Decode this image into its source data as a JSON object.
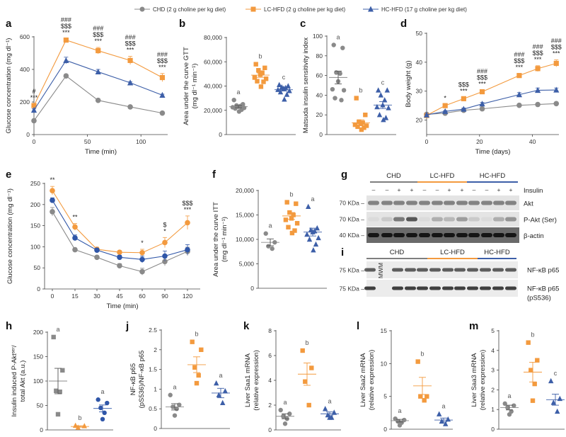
{
  "legend": [
    {
      "label": "CHD (2 g choline per kg diet)",
      "color": "#8a8a8a",
      "marker": "circle"
    },
    {
      "label": "LC-HFD (2 g choline per kg diet)",
      "color": "#f39a3e",
      "marker": "square"
    },
    {
      "label": "HC-HFD (17 g choline per kg diet)",
      "color": "#3d5fa8",
      "marker": "triangle"
    }
  ],
  "chart_data": [
    {
      "panel": "a",
      "type": "line",
      "xlabel": "Time (min)",
      "ylabel": [
        "Glucose concentration (mg dl⁻¹)"
      ],
      "xlim": [
        0,
        125
      ],
      "ylim": [
        0,
        600
      ],
      "xticks": [
        0,
        50,
        100
      ],
      "yticks": [
        0,
        200,
        400,
        600
      ],
      "x": [
        0,
        30,
        60,
        90,
        120
      ],
      "series": [
        {
          "name": "CHD",
          "marker": "circle",
          "color": "#8a8a8a",
          "values": [
            85,
            360,
            210,
            170,
            132
          ],
          "sem": [
            8,
            10,
            6,
            5,
            5
          ]
        },
        {
          "name": "LC-HFD",
          "marker": "square",
          "color": "#f39a3e",
          "values": [
            178,
            580,
            515,
            455,
            350
          ],
          "sem": [
            10,
            8,
            20,
            25,
            25
          ]
        },
        {
          "name": "HC-HFD",
          "marker": "triangle",
          "color": "#3d5fa8",
          "values": [
            150,
            455,
            385,
            318,
            242
          ],
          "sem": [
            8,
            20,
            15,
            6,
            6
          ]
        }
      ],
      "annotations": [
        {
          "x": 0,
          "text": [
            "#",
            "***"
          ]
        },
        {
          "x": 30,
          "text": [
            "###",
            "$$$",
            "***"
          ]
        },
        {
          "x": 60,
          "text": [
            "###",
            "$$$",
            "***"
          ]
        },
        {
          "x": 90,
          "text": [
            "###",
            "$$$",
            "***"
          ]
        },
        {
          "x": 120,
          "text": [
            "###",
            "$$$",
            "***"
          ]
        }
      ]
    },
    {
      "panel": "b",
      "type": "scatter",
      "ylabel": [
        "Area under the curve GTT",
        "(mg dl⁻¹ min⁻¹)"
      ],
      "ylim": [
        0,
        80000
      ],
      "yticks": [
        0,
        20000,
        40000,
        60000,
        80000
      ],
      "ytick_labels": [
        "0",
        "20,000",
        "40,000",
        "60,000",
        "80,000"
      ],
      "groups": [
        {
          "name": "CHD",
          "marker": "circle",
          "color": "#8a8a8a",
          "letter": "a",
          "points": [
            28500,
            25000,
            24000,
            23500,
            23000,
            22500,
            22000,
            21500,
            20500,
            19000
          ],
          "mean": 23000,
          "sem": 900
        },
        {
          "name": "LC-HFD",
          "marker": "square",
          "color": "#f39a3e",
          "letter": "b",
          "points": [
            58000,
            55000,
            53000,
            51000,
            49500,
            47000,
            46000,
            44000,
            43500,
            39500
          ],
          "mean": 49000,
          "sem": 1800
        },
        {
          "name": "HC-HFD",
          "marker": "triangle",
          "color": "#3d5fa8",
          "letter": "c",
          "points": [
            41000,
            40000,
            39000,
            38500,
            38000,
            37000,
            36000,
            35000,
            33000,
            29000
          ],
          "mean": 37000,
          "sem": 1100
        }
      ]
    },
    {
      "panel": "c",
      "type": "scatter",
      "ylabel": [
        "Matsuda insulin sensitivity index"
      ],
      "ylim": [
        0,
        100
      ],
      "yticks": [
        0,
        20,
        40,
        60,
        80,
        100
      ],
      "ytick_labels": [
        "0",
        "20",
        "40",
        "60",
        "80",
        "100"
      ],
      "groups": [
        {
          "name": "CHD",
          "marker": "circle",
          "color": "#8a8a8a",
          "letter": "a",
          "points": [
            91,
            88,
            63,
            62,
            54,
            46,
            45,
            37,
            35
          ],
          "mean": 58,
          "sem": 6.5
        },
        {
          "name": "LC-HFD",
          "marker": "square",
          "color": "#f39a3e",
          "letter": "b",
          "points": [
            37,
            20,
            13,
            12,
            11,
            10,
            9,
            8,
            7,
            5
          ],
          "mean": 12,
          "sem": 3
        },
        {
          "name": "HC-HFD",
          "marker": "triangle",
          "color": "#3d5fa8",
          "letter": "c",
          "points": [
            45,
            45,
            40,
            35,
            30,
            28,
            27,
            20,
            17,
            15
          ],
          "mean": 30,
          "sem": 3.5
        }
      ]
    },
    {
      "panel": "d",
      "type": "line",
      "xlabel": "Time (days)",
      "ylabel": [
        "Body weight (g)"
      ],
      "xlim": [
        0,
        50
      ],
      "ylim": [
        15,
        50
      ],
      "xticks": [
        0,
        20,
        40
      ],
      "yticks": [
        20,
        30,
        40,
        50
      ],
      "x": [
        0,
        7,
        14,
        21,
        35,
        42,
        49
      ],
      "series": [
        {
          "name": "CHD",
          "marker": "circle",
          "color": "#8a8a8a",
          "values": [
            22,
            22.4,
            23.4,
            23.9,
            25.1,
            25.4,
            25.7
          ],
          "sem": [
            0.3,
            0.3,
            0.3,
            0.3,
            0.3,
            0.3,
            0.3
          ]
        },
        {
          "name": "LC-HFD",
          "marker": "square",
          "color": "#f39a3e",
          "values": [
            21.6,
            25,
            27.4,
            29.8,
            35.4,
            37.8,
            39.6
          ],
          "sem": [
            0.3,
            0.4,
            0.4,
            0.5,
            0.6,
            1.0,
            1.2
          ]
        },
        {
          "name": "HC-HFD",
          "marker": "triangle",
          "color": "#3d5fa8",
          "values": [
            21.8,
            23,
            23.8,
            25.6,
            28.8,
            30.3,
            30.4
          ],
          "sem": [
            0.3,
            0.3,
            0.4,
            0.5,
            0.7,
            0.8,
            0.7
          ]
        }
      ],
      "annotations": [
        {
          "x": 7,
          "text": [
            "*"
          ]
        },
        {
          "x": 14,
          "text": [
            "$$$",
            "***"
          ]
        },
        {
          "x": 21,
          "text": [
            "###",
            "$$$",
            "***"
          ]
        },
        {
          "x": 35,
          "text": [
            "###",
            "$$$",
            "***"
          ]
        },
        {
          "x": 42,
          "text": [
            "###",
            "$$$",
            "***"
          ]
        },
        {
          "x": 49,
          "text": [
            "###",
            "$$$",
            "***"
          ]
        }
      ]
    },
    {
      "panel": "e",
      "type": "line",
      "xlabel": "Time (min)",
      "ylabel": [
        "Glucose concentration (mg dl⁻¹)"
      ],
      "categorical_x": true,
      "ylim": [
        0,
        250
      ],
      "yticks": [
        0,
        50,
        100,
        150,
        200,
        250
      ],
      "x": [
        "0",
        "15",
        "30",
        "45",
        "60",
        "90",
        "120"
      ],
      "series": [
        {
          "name": "CHD",
          "marker": "circle",
          "color": "#8a8a8a",
          "values": [
            183,
            93,
            75,
            55,
            41,
            65,
            89
          ],
          "sem": [
            10,
            4,
            4,
            5,
            8,
            10,
            10
          ]
        },
        {
          "name": "LC-HFD",
          "marker": "circle",
          "color": "#f39a3e",
          "values": [
            233,
            147,
            94,
            87,
            86,
            110,
            157
          ],
          "sem": [
            10,
            8,
            5,
            4,
            8,
            12,
            16
          ]
        },
        {
          "name": "HC-HFD",
          "marker": "circle",
          "color": "#2f56a8",
          "values": [
            210,
            121,
            92,
            75,
            70,
            78,
            93
          ],
          "sem": [
            6,
            7,
            4,
            5,
            8,
            12,
            12
          ]
        }
      ],
      "annotations": [
        {
          "x": 0,
          "text": [
            "**"
          ]
        },
        {
          "x": 1,
          "text": [
            "**"
          ]
        },
        {
          "x": 4,
          "text": [
            "*"
          ]
        },
        {
          "x": 5,
          "text": [
            "$",
            "*"
          ]
        },
        {
          "x": 6,
          "text": [
            "$$$",
            "***"
          ]
        }
      ]
    },
    {
      "panel": "f",
      "type": "scatter",
      "ylabel": [
        "Area under the curve ITT",
        "(mg dl⁻¹ min⁻¹)"
      ],
      "ylim": [
        0,
        20000
      ],
      "yticks": [
        0,
        5000,
        10000,
        15000,
        20000
      ],
      "ytick_labels": [
        "0",
        "5,000",
        "10,000",
        "15,000",
        "20,000"
      ],
      "groups": [
        {
          "name": "CHD",
          "marker": "circle",
          "color": "#8a8a8a",
          "letter": "a",
          "points": [
            11200,
            9400,
            8600,
            8100
          ],
          "mean": 9400,
          "sem": 700
        },
        {
          "name": "LC-HFD",
          "marker": "square",
          "color": "#f39a3e",
          "letter": "b",
          "points": [
            17600,
            17300,
            15500,
            15000,
            14300,
            14000,
            13300,
            12500,
            11800,
            11300
          ],
          "mean": 14800,
          "sem": 700
        },
        {
          "name": "HC-HFD",
          "marker": "triangle",
          "color": "#3d5fa8",
          "letter": "a",
          "points": [
            16700,
            12300,
            11900,
            11700,
            11500,
            11000,
            10300,
            10000,
            9000,
            7800
          ],
          "mean": 11500,
          "sem": 800
        }
      ]
    },
    {
      "panel": "h",
      "type": "scatter",
      "ylabel": [
        "Insulin induced P-Aktˢᵉʳ/",
        "total Akt (a.u.)"
      ],
      "ylim": [
        0,
        200
      ],
      "yticks": [
        0,
        50,
        100,
        150,
        200
      ],
      "ytick_labels": [
        "0",
        "50",
        "100",
        "150",
        "200"
      ],
      "groups": [
        {
          "name": "CHD",
          "marker": "square",
          "color": "#8a8a8a",
          "letter": "a",
          "points": [
            190,
            122,
            80,
            78,
            32
          ],
          "mean": 100,
          "sem": 26
        },
        {
          "name": "LC-HFD",
          "marker": "triangle",
          "color": "#f39a3e",
          "letter": "b",
          "points": [
            9,
            8,
            5
          ],
          "mean": 7,
          "sem": 1.5
        },
        {
          "name": "HC-HFD",
          "marker": "circle",
          "color": "#2f56a8",
          "letter": "a",
          "points": [
            62,
            55,
            45,
            35,
            22
          ],
          "mean": 44,
          "sem": 7
        }
      ]
    },
    {
      "panel": "j",
      "type": "scatter",
      "ylabel": [
        "NF-κB p65",
        "(pS536)/NF-κB p65"
      ],
      "ylim": [
        0,
        2.5
      ],
      "yticks": [
        0,
        0.5,
        1,
        1.5,
        2,
        2.5
      ],
      "ytick_labels": [
        "0",
        "0.5",
        "1",
        "1.5",
        "2",
        "2.5"
      ],
      "groups": [
        {
          "name": "CHD",
          "marker": "circle",
          "color": "#8a8a8a",
          "letter": "a",
          "points": [
            0.85,
            0.6,
            0.55,
            0.5,
            0.33
          ],
          "mean": 0.55,
          "sem": 0.08
        },
        {
          "name": "LC-HFD",
          "marker": "square",
          "color": "#f39a3e",
          "letter": "b",
          "points": [
            2.2,
            2.0,
            1.55,
            1.35,
            1.15
          ],
          "mean": 1.62,
          "sem": 0.2
        },
        {
          "name": "HC-HFD",
          "marker": "triangle",
          "color": "#3d5fa8",
          "letter": "a",
          "points": [
            1.15,
            0.95,
            0.85,
            0.65
          ],
          "mean": 0.9,
          "sem": 0.12
        }
      ]
    },
    {
      "panel": "k",
      "type": "scatter",
      "ylabel": [
        "Liver Saa1 mRNA",
        "(relative expression)"
      ],
      "ylim": [
        0,
        8
      ],
      "yticks": [
        0,
        2,
        4,
        6,
        8
      ],
      "ytick_labels": [
        "0",
        "2",
        "4",
        "6",
        "8"
      ],
      "groups": [
        {
          "name": "CHD",
          "marker": "circle",
          "color": "#8a8a8a",
          "letter": "a",
          "points": [
            1.6,
            1.3,
            1.1,
            0.9,
            0.5
          ],
          "mean": 1.1,
          "sem": 0.2
        },
        {
          "name": "LC-HFD",
          "marker": "square",
          "color": "#f39a3e",
          "letter": "b",
          "points": [
            6.4,
            5.0,
            3.9,
            2.0
          ],
          "mean": 4.5,
          "sem": 0.9
        },
        {
          "name": "HC-HFD",
          "marker": "triangle",
          "color": "#3d5fa8",
          "letter": "a",
          "points": [
            1.7,
            1.4,
            1.2,
            1.0,
            1.0
          ],
          "mean": 1.3,
          "sem": 0.15
        }
      ]
    },
    {
      "panel": "l",
      "type": "scatter",
      "ylabel": [
        "Liver Saa2 mRNA",
        "(relative expression)"
      ],
      "ylim": [
        0,
        15
      ],
      "yticks": [
        0,
        5,
        10,
        15
      ],
      "ytick_labels": [
        "0",
        "5",
        "10",
        "15"
      ],
      "groups": [
        {
          "name": "CHD",
          "marker": "circle",
          "color": "#8a8a8a",
          "letter": "a",
          "points": [
            1.6,
            1.4,
            1.2,
            1.0,
            0.6
          ],
          "mean": 1.3,
          "sem": 0.2
        },
        {
          "name": "LC-HFD",
          "marker": "square",
          "color": "#f39a3e",
          "letter": "b",
          "points": [
            10.3,
            5.0,
            5.0,
            4.4
          ],
          "mean": 6.6,
          "sem": 1.3
        },
        {
          "name": "HC-HFD",
          "marker": "triangle",
          "color": "#3d5fa8",
          "letter": "a",
          "points": [
            2.3,
            1.5,
            1.2,
            0.8
          ],
          "mean": 1.4,
          "sem": 0.3
        }
      ]
    },
    {
      "panel": "m",
      "type": "scatter",
      "ylabel": [
        "Liver Saa3 mRNA",
        "(relative expression)"
      ],
      "ylim": [
        0,
        5
      ],
      "yticks": [
        0,
        1,
        2,
        3,
        4,
        5
      ],
      "ytick_labels": [
        "0",
        "1",
        "2",
        "3",
        "4",
        "5"
      ],
      "groups": [
        {
          "name": "CHD",
          "marker": "circle",
          "color": "#8a8a8a",
          "letter": "a",
          "points": [
            1.3,
            1.2,
            1.1,
            0.9,
            0.75
          ],
          "mean": 1.1,
          "sem": 0.12
        },
        {
          "name": "LC-HFD",
          "marker": "square",
          "color": "#f39a3e",
          "letter": "b",
          "points": [
            4.4,
            3.5,
            3.0,
            2.3,
            1.45
          ],
          "mean": 2.9,
          "sem": 0.5
        },
        {
          "name": "HC-HFD",
          "marker": "triangle",
          "color": "#3d5fa8",
          "letter": "c",
          "points": [
            2.45,
            1.55,
            1.35,
            0.9
          ],
          "mean": 1.5,
          "sem": 0.28
        }
      ]
    }
  ],
  "blots": {
    "g": {
      "panel": "g",
      "groups": [
        {
          "label": "CHD",
          "color": "#7f7f7f"
        },
        {
          "label": "LC-HFD",
          "color": "#f39a3e"
        },
        {
          "label": "HC-HFD",
          "color": "#3d5fa8"
        }
      ],
      "insulin_label": "Insulin",
      "insulin": [
        "–",
        "–",
        "+",
        "+",
        "–",
        "–",
        "+",
        "+",
        "–",
        "–",
        "+",
        "+"
      ],
      "rows": [
        {
          "marker": "70 KDa",
          "label": "Akt"
        },
        {
          "marker": "70 KDa",
          "label": "P-Akt (Ser)"
        },
        {
          "marker": "40 KDa",
          "label": "β-actin"
        }
      ]
    },
    "i": {
      "panel": "i",
      "groups": [
        {
          "label": "CHD",
          "color": "#7f7f7f"
        },
        {
          "label": "LC-HFD",
          "color": "#f39a3e"
        },
        {
          "label": "HC-HFD",
          "color": "#3d5fa8"
        }
      ],
      "ladder_label": "MWM",
      "rows": [
        {
          "marker": "75 KDa",
          "label": [
            "NF-κB p65"
          ]
        },
        {
          "marker": "75 KDa",
          "label": [
            "NF-κB p65",
            "(pS536)"
          ]
        }
      ]
    }
  }
}
